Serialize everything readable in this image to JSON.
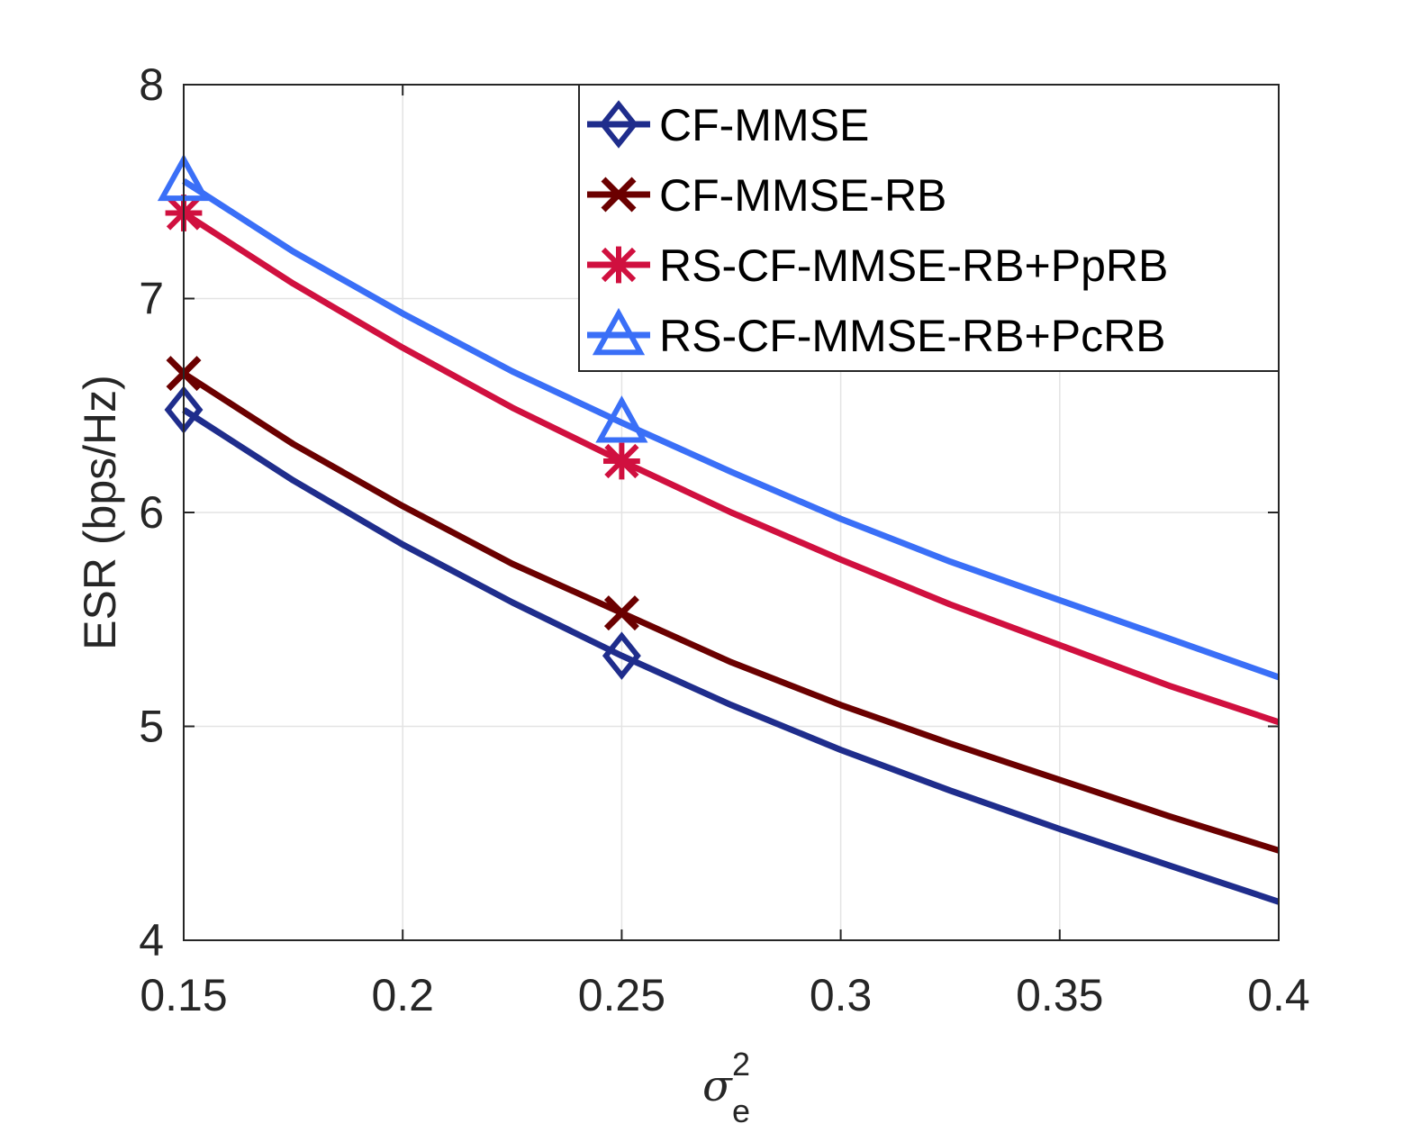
{
  "chart_data": {
    "type": "line",
    "title": "",
    "xlabel": {
      "symbol": "σ",
      "sub": "e",
      "sup": "2"
    },
    "ylabel": "ESR (bps/Hz)",
    "xlim": [
      0.15,
      0.4
    ],
    "ylim": [
      4,
      8
    ],
    "xticks": [
      0.15,
      0.2,
      0.25,
      0.3,
      0.35,
      0.4
    ],
    "xtick_labels": [
      "0.15",
      "0.2",
      "0.25",
      "0.3",
      "0.35",
      "0.4"
    ],
    "yticks": [
      4,
      5,
      6,
      7,
      8
    ],
    "ytick_labels": [
      "4",
      "5",
      "6",
      "7",
      "8"
    ],
    "grid": true,
    "legend_position": "top-right",
    "x": [
      0.15,
      0.175,
      0.2,
      0.225,
      0.25,
      0.275,
      0.3,
      0.325,
      0.35,
      0.375,
      0.4
    ],
    "series": [
      {
        "name": "CF-MMSE",
        "color": "#1f2d8c",
        "marker": "diamond",
        "marker_x": [
          0.15,
          0.25
        ],
        "values": [
          6.48,
          6.15,
          5.85,
          5.58,
          5.33,
          5.1,
          4.89,
          4.7,
          4.52,
          4.35,
          4.18
        ]
      },
      {
        "name": "CF-MMSE-RB",
        "color": "#6b0000",
        "marker": "x",
        "marker_x": [
          0.15,
          0.25
        ],
        "values": [
          6.65,
          6.32,
          6.03,
          5.76,
          5.53,
          5.3,
          5.1,
          4.92,
          4.75,
          4.58,
          4.42
        ]
      },
      {
        "name": "RS-CF-MMSE-RB+PpRB",
        "color": "#d0103f",
        "marker": "asterisk",
        "marker_x": [
          0.15,
          0.25
        ],
        "values": [
          7.4,
          7.07,
          6.77,
          6.49,
          6.24,
          6.0,
          5.78,
          5.57,
          5.38,
          5.19,
          5.02
        ]
      },
      {
        "name": "RS-CF-MMSE-RB+PcRB",
        "color": "#3a6ff7",
        "marker": "triangle",
        "marker_x": [
          0.15,
          0.25
        ],
        "values": [
          7.55,
          7.22,
          6.93,
          6.66,
          6.42,
          6.19,
          5.97,
          5.77,
          5.59,
          5.41,
          5.23
        ]
      }
    ]
  }
}
